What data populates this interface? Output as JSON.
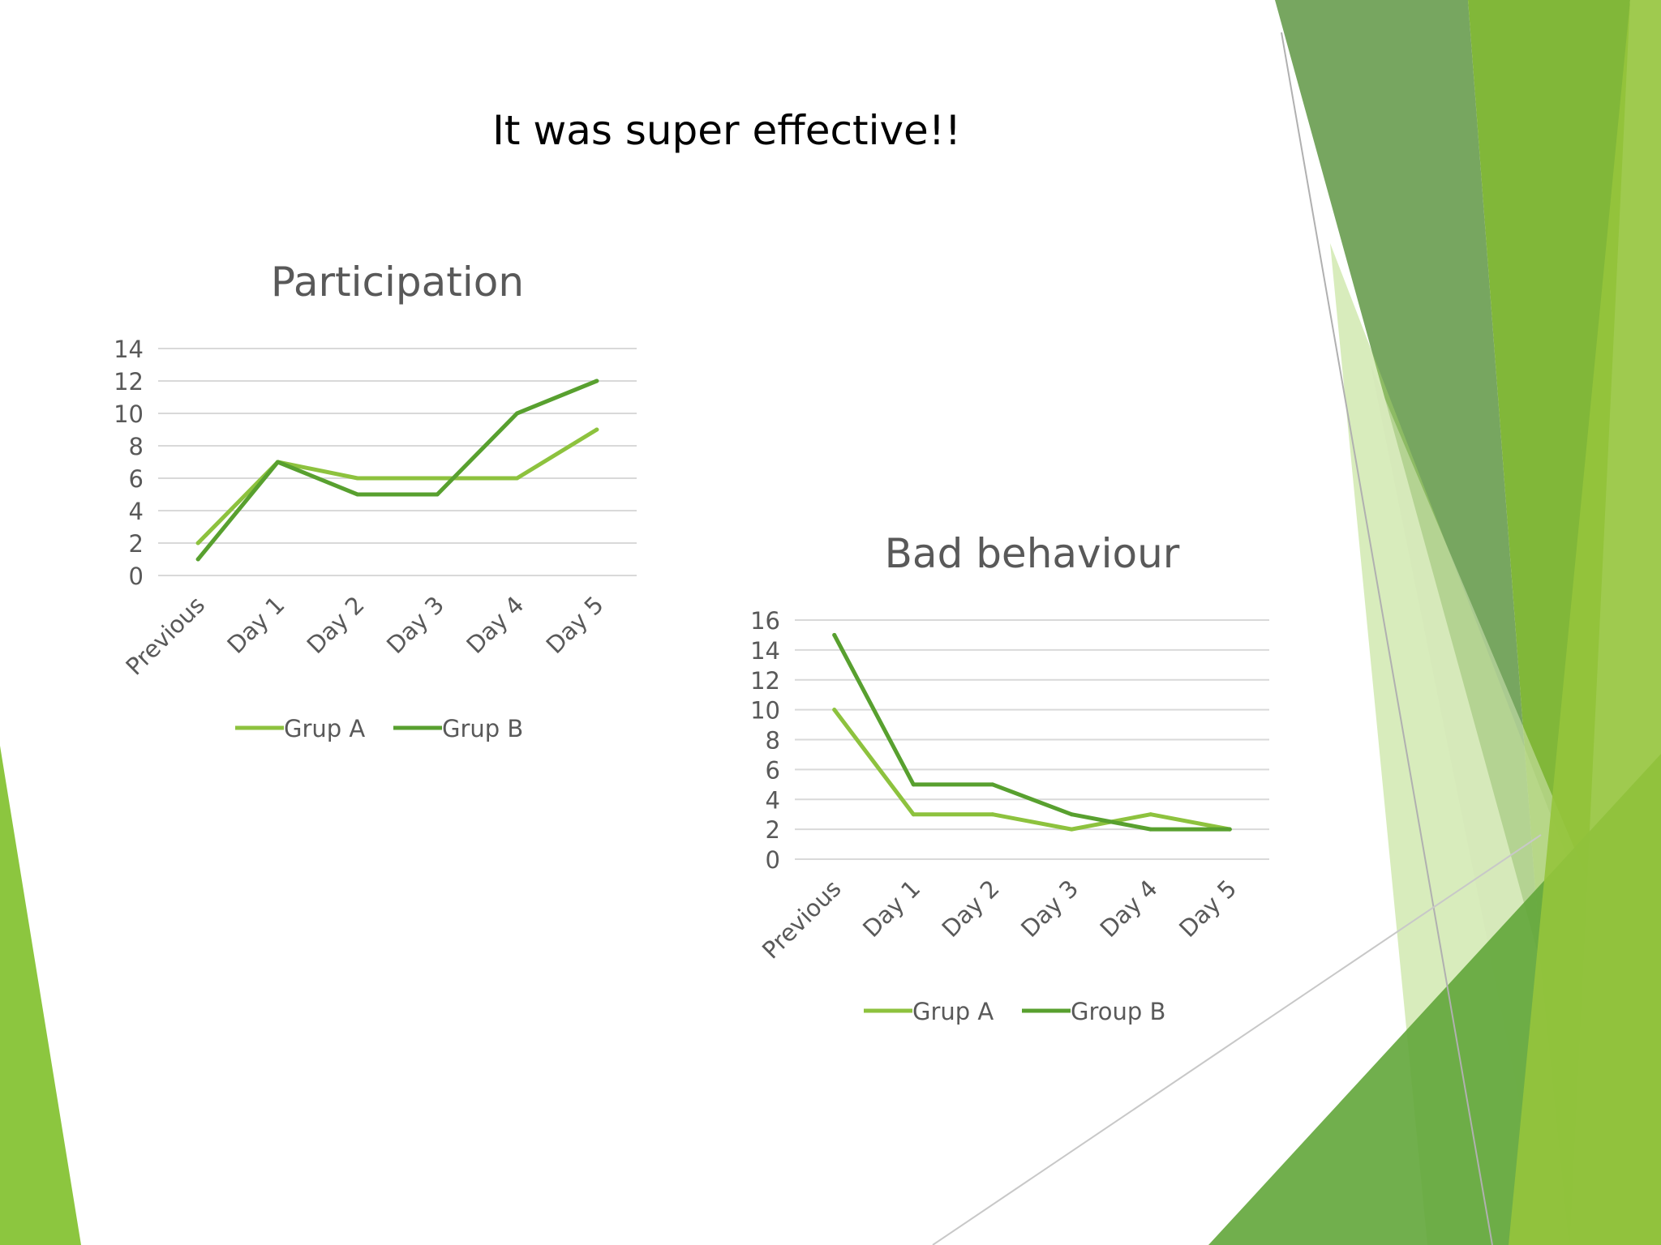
{
  "slide": {
    "title": "It was super effective!!"
  },
  "colors": {
    "grupA": "#8dc23e",
    "grupB": "#58a02f",
    "grid": "#d9d9d9",
    "text": "#595959"
  },
  "chart_data": [
    {
      "type": "line",
      "title": "Participation",
      "categories": [
        "Previous",
        "Day 1",
        "Day 2",
        "Day 3",
        "Day 4",
        "Day 5"
      ],
      "series": [
        {
          "name": "Grup A",
          "values": [
            2,
            7,
            6,
            6,
            6,
            9
          ]
        },
        {
          "name": "Grup B",
          "values": [
            1,
            7,
            5,
            5,
            10,
            12
          ]
        }
      ],
      "ylim": [
        0,
        14
      ],
      "yticks": [
        0,
        2,
        4,
        6,
        8,
        10,
        12,
        14
      ],
      "grid": true,
      "legend": "bottom"
    },
    {
      "type": "line",
      "title": "Bad behaviour",
      "categories": [
        "Previous",
        "Day 1",
        "Day 2",
        "Day 3",
        "Day 4",
        "Day 5"
      ],
      "series": [
        {
          "name": "Grup A",
          "values": [
            10,
            3,
            3,
            2,
            3,
            2
          ]
        },
        {
          "name": "Group B",
          "values": [
            15,
            5,
            5,
            3,
            2,
            2
          ]
        }
      ],
      "ylim": [
        0,
        16
      ],
      "yticks": [
        0,
        2,
        4,
        6,
        8,
        10,
        12,
        14,
        16
      ],
      "grid": true,
      "legend": "bottom"
    }
  ]
}
